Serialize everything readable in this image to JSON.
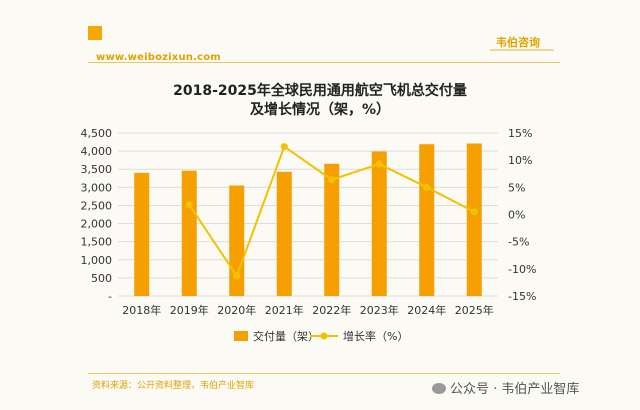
{
  "header": {
    "site_url": "www.weibozixun.com",
    "brand": "韦伯咨询"
  },
  "title_line1": "2018-2025年全球民用通用航空飞机总交付量",
  "title_line2": "及增长情况（架，%）",
  "footer": {
    "source": "资料来源：公开资料整理，韦伯产业智库",
    "wechat": "公众号 · 韦伯产业智库"
  },
  "colors": {
    "bar": "#f5a000",
    "line": "#f2c200",
    "grid": "#dddddd",
    "accent": "#e0a300"
  },
  "chart_data": {
    "type": "bar+line",
    "categories": [
      "2018年",
      "2019年",
      "2020年",
      "2021年",
      "2022年",
      "2023年",
      "2024年",
      "2025年"
    ],
    "series": [
      {
        "name": "交付量（架）",
        "type": "bar",
        "axis": "left",
        "values": [
          3400,
          3460,
          3050,
          3430,
          3650,
          3990,
          4190,
          4210
        ]
      },
      {
        "name": "增长率（%）",
        "type": "line",
        "axis": "right",
        "values": [
          null,
          1.8,
          -11.3,
          12.5,
          6.4,
          9.3,
          5.0,
          0.5
        ]
      }
    ],
    "y_left": {
      "min": 0,
      "max": 4500,
      "ticks": [
        "4,500",
        "4,000",
        "3,500",
        "3,000",
        "2,500",
        "2,000",
        "1,500",
        "1,000",
        "500",
        "-"
      ]
    },
    "y_right": {
      "min": -15,
      "max": 15,
      "ticks": [
        "15%",
        "10%",
        "5%",
        "0%",
        "-5%",
        "-10%",
        "-15%"
      ]
    },
    "grid": true,
    "legend_position": "bottom"
  }
}
